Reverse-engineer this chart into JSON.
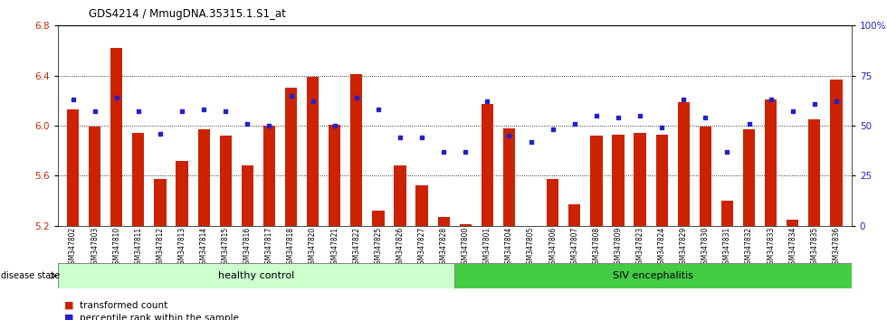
{
  "title": "GDS4214 / MmugDNA.35315.1.S1_at",
  "samples": [
    "GSM347802",
    "GSM347803",
    "GSM347810",
    "GSM347811",
    "GSM347812",
    "GSM347813",
    "GSM347814",
    "GSM347815",
    "GSM347816",
    "GSM347817",
    "GSM347818",
    "GSM347820",
    "GSM347821",
    "GSM347822",
    "GSM347825",
    "GSM347826",
    "GSM347827",
    "GSM347828",
    "GSM347800",
    "GSM347801",
    "GSM347804",
    "GSM347805",
    "GSM347806",
    "GSM347807",
    "GSM347808",
    "GSM347809",
    "GSM347823",
    "GSM347824",
    "GSM347829",
    "GSM347830",
    "GSM347831",
    "GSM347832",
    "GSM347833",
    "GSM347834",
    "GSM347835",
    "GSM347836"
  ],
  "bar_values": [
    6.13,
    5.99,
    6.62,
    5.94,
    5.57,
    5.72,
    5.97,
    5.92,
    5.68,
    6.0,
    6.3,
    6.39,
    6.01,
    6.41,
    5.32,
    5.68,
    5.52,
    5.27,
    5.21,
    6.17,
    5.98,
    5.15,
    5.57,
    5.37,
    5.92,
    5.93,
    5.94,
    5.93,
    6.19,
    5.99,
    5.4,
    5.97,
    6.21,
    5.25,
    6.05,
    6.37
  ],
  "blue_values": [
    63,
    57,
    64,
    57,
    46,
    57,
    58,
    57,
    51,
    50,
    65,
    62,
    50,
    64,
    58,
    44,
    44,
    37,
    37,
    62,
    45,
    42,
    48,
    51,
    55,
    54,
    55,
    49,
    63,
    54,
    37,
    51,
    63,
    57,
    61,
    62
  ],
  "healthy_count": 18,
  "ylim": [
    5.2,
    6.8
  ],
  "y2lim": [
    0,
    100
  ],
  "yticks": [
    5.2,
    5.6,
    6.0,
    6.4,
    6.8
  ],
  "y2ticks": [
    0,
    25,
    50,
    75,
    100
  ],
  "bar_color": "#cc2200",
  "blue_color": "#2222cc",
  "tick_bg_color": "#d8d8d8",
  "healthy_color": "#ccffcc",
  "siv_color": "#44cc44",
  "baseline": 5.2,
  "legend_items": [
    "transformed count",
    "percentile rank within the sample"
  ]
}
